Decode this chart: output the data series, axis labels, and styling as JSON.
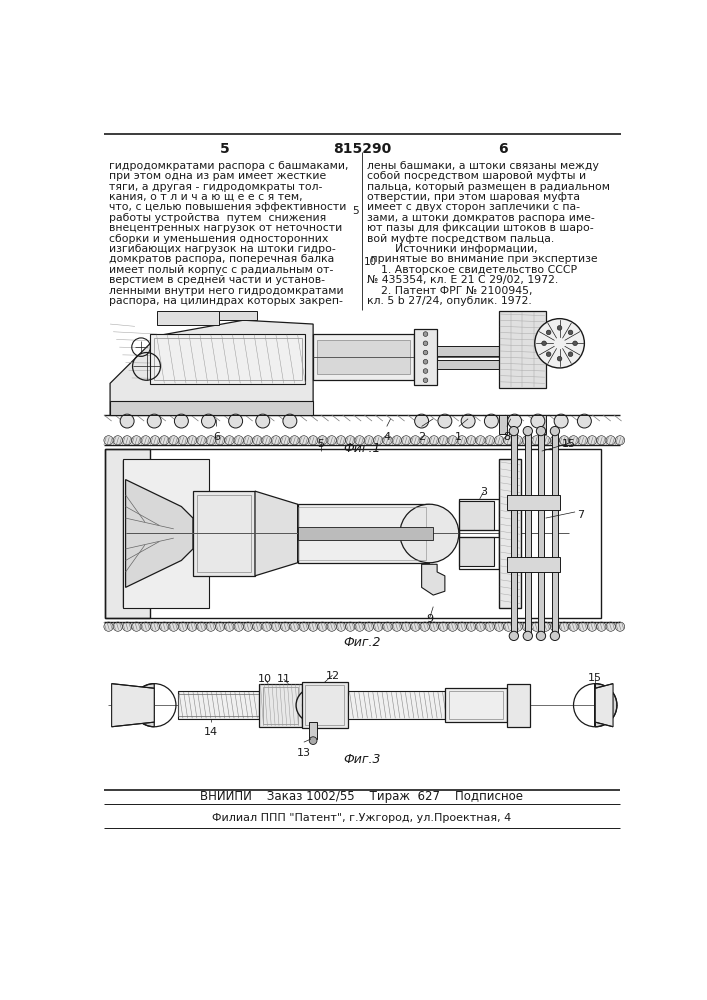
{
  "page_number_left": "5",
  "page_number_center": "815290",
  "page_number_right": "6",
  "col_left_lines": [
    "гидродомкратами распора с башмаками,",
    "при этом одна из рам имеет жесткие",
    "тяги, а другая - гидродомкраты тол-",
    "кания, о т л и ч а ю щ е е с я тем,",
    "что, с целью повышения эффективности",
    "работы устройства  путем  снижения",
    "внецентренных нагрузок от неточности",
    "сборки и уменьшения односторонних",
    "изгибающих нагрузок на штоки гидро-",
    "домкратов распора, поперечная балка",
    "имеет полый корпус с радиальным от-",
    "верстием в средней части и установ-",
    "ленными внутри него гидродомкратами",
    "распора, на цилиндрах которых закреп-"
  ],
  "col_right_lines": [
    "лены башмаки, а штоки связаны между",
    "собой посредством шаровой муфты и",
    "пальца, который размещен в радиальном",
    "отверстии, при этом шаровая муфта",
    "имеет с двух сторон заплечики с па-",
    "зами, а штоки домкратов распора име-",
    "ют пазы для фиксации штоков в шаро-",
    "вой муфте посредством пальца.",
    "        Источники информации,",
    " принятые во внимание при экспертизе",
    "    1. Авторское свидетельство СССР",
    "№ 435354, кл. Е 21 С 29/02, 1972.",
    "    2. Патент ФРГ № 2100945,",
    "кл. 5 b 27/24, опублик. 1972."
  ],
  "fig1_label": "Фиг.1",
  "fig2_label": "Фиг.2",
  "fig3_label": "Фиг.3",
  "footer_text1": "ВНИИПИ    Заказ 1002/55    Тираж  627    Подписное",
  "footer_text2": "Филиал ППП \"Патент\", г.Ужгород, ул.Проектная, 4",
  "bg_color": "#ffffff",
  "fg_color": "#1a1a1a"
}
